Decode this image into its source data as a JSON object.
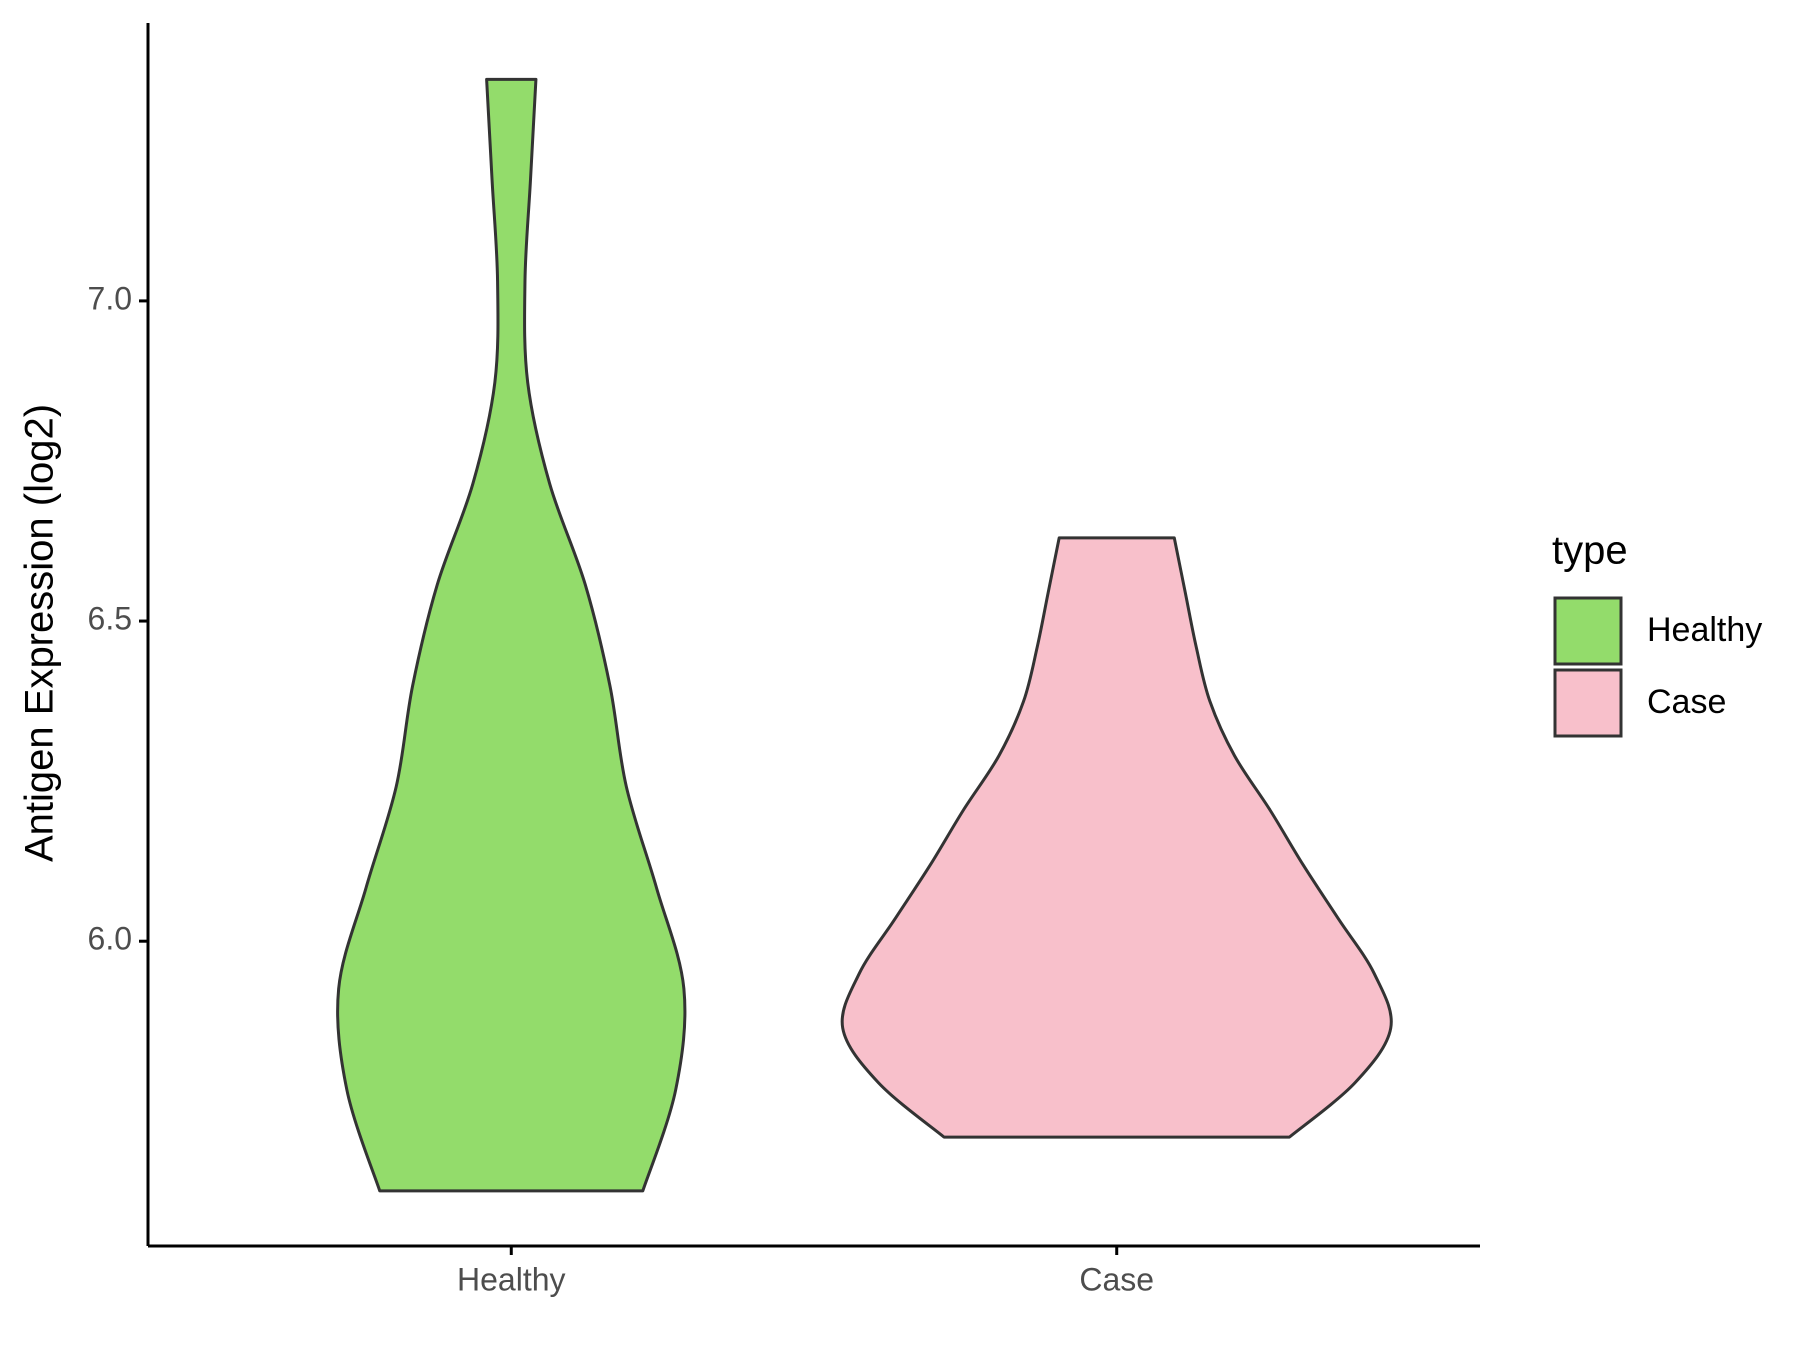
{
  "chart_data": {
    "type": "violin",
    "y_label": "Antigen Expression (log2)",
    "categories": [
      "Healthy",
      "Case"
    ],
    "legend_title": "type",
    "legend_position": "right",
    "series": [
      {
        "name": "Healthy",
        "color": "#93dc6b",
        "min": 5.61,
        "max": 7.346,
        "widths": [
          0.48,
          0.6,
          0.63,
          0.53,
          0.42,
          0.36,
          0.27,
          0.14,
          0.06,
          0.05,
          0.07,
          0.09
        ]
      },
      {
        "name": "Case",
        "color": "#f8c0cb",
        "min": 5.694,
        "max": 6.63,
        "widths": [
          0.63,
          0.87,
          1.0,
          0.94,
          0.81,
          0.68,
          0.56,
          0.43,
          0.34,
          0.29,
          0.25,
          0.21
        ]
      }
    ],
    "ylim": [
      5.524,
      7.434
    ],
    "yticks": [
      {
        "value": 6,
        "label": "6.0"
      },
      6.5,
      {
        "value": 7,
        "label": "7.0"
      }
    ]
  }
}
